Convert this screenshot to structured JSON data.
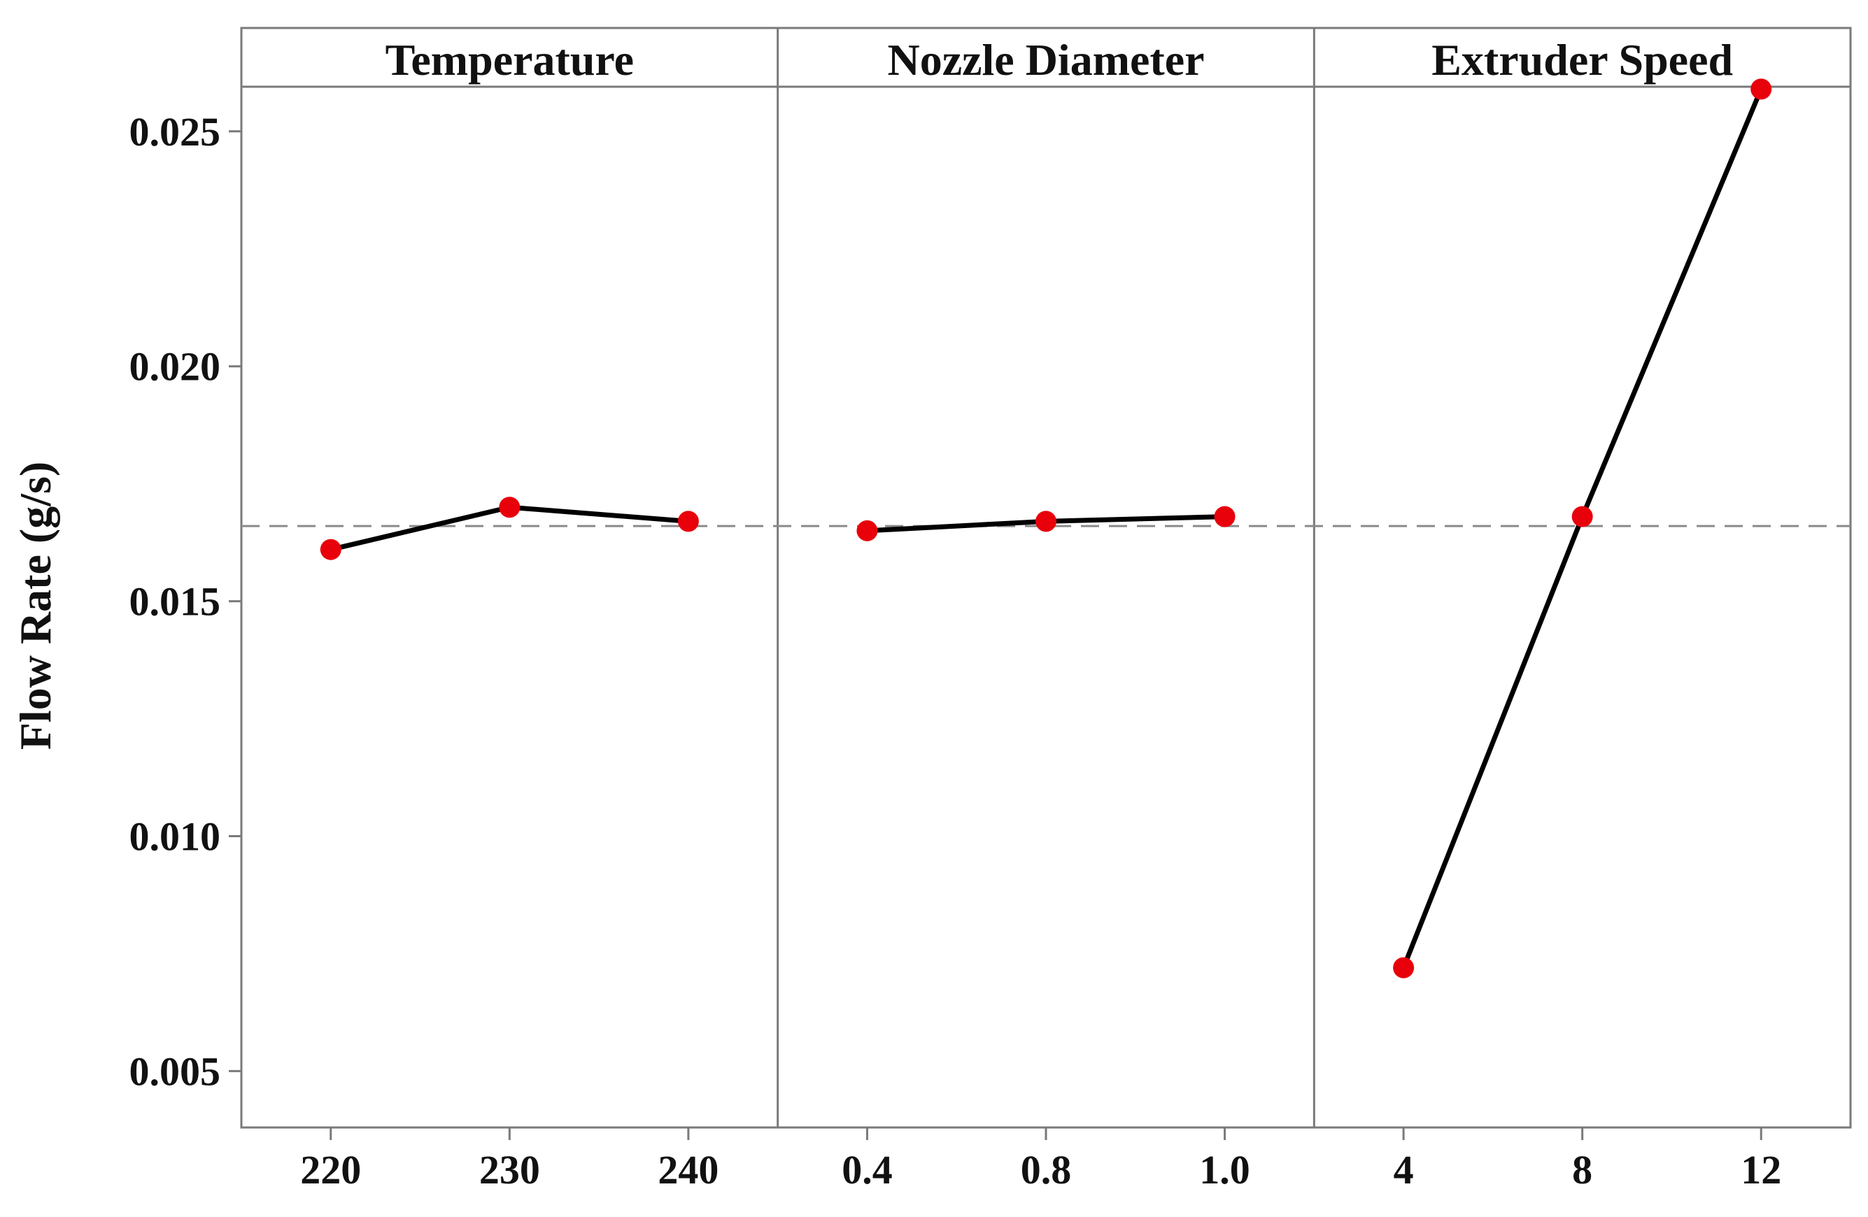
{
  "chart_data": {
    "type": "line",
    "ylabel": "Flow Rate (g/s)",
    "ylim": [
      0.0038,
      0.0272
    ],
    "yticks": [
      "0.005",
      "0.010",
      "0.015",
      "0.020",
      "0.025"
    ],
    "ytick_values": [
      0.005,
      0.01,
      0.015,
      0.02,
      0.025
    ],
    "reference_line": 0.0166,
    "grid": false,
    "colors": {
      "marker": "#e8000b",
      "line": "#000000",
      "reference": "#8a8a8a",
      "frame": "#7a7a7a"
    },
    "panels": [
      {
        "title": "Temperature",
        "x": [
          "220",
          "230",
          "240"
        ],
        "values": [
          0.0161,
          0.017,
          0.0167
        ]
      },
      {
        "title": "Nozzle Diameter",
        "x": [
          "0.4",
          "0.8",
          "1.0"
        ],
        "values": [
          0.0165,
          0.0167,
          0.0168
        ]
      },
      {
        "title": "Extruder Speed",
        "x": [
          "4",
          "8",
          "12"
        ],
        "values": [
          0.0072,
          0.0168,
          0.0259
        ]
      }
    ]
  }
}
